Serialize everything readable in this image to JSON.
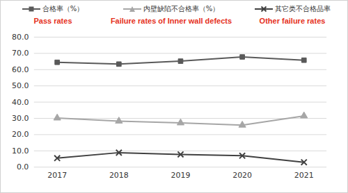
{
  "chart_data": {
    "type": "line",
    "categories": [
      "2017",
      "2018",
      "2019",
      "2020",
      "2021"
    ],
    "series": [
      {
        "name": "合格率（%）",
        "color": "#595959",
        "marker": "square",
        "values": [
          64.5,
          63.4,
          65.2,
          67.8,
          65.8
        ]
      },
      {
        "name": "内壁缺陷不合格率（%）",
        "color": "#a6a6a6",
        "marker": "triangle",
        "values": [
          30.2,
          28.3,
          27.2,
          25.8,
          31.5
        ]
      },
      {
        "name": "其它类不合格品率",
        "color": "#404040",
        "marker": "times",
        "values": [
          5.5,
          8.9,
          7.8,
          7.0,
          3.0
        ]
      }
    ],
    "annotations": [
      "Pass rates",
      "Failure rates of Inner wall defects",
      "Other failure rates"
    ],
    "ylim": [
      0,
      80
    ],
    "yticks": [
      {
        "value": 0,
        "label": "0.0"
      },
      {
        "value": 10,
        "label": "10.0"
      },
      {
        "value": 20,
        "label": "20.0"
      },
      {
        "value": 30,
        "label": "30.0"
      },
      {
        "value": 40,
        "label": "40.0"
      },
      {
        "value": 50,
        "label": "50.0"
      },
      {
        "value": 60,
        "label": "60.0"
      },
      {
        "value": 70,
        "label": "70.0"
      },
      {
        "value": 80,
        "label": "80.0"
      }
    ],
    "grid": true,
    "legend": "top"
  }
}
